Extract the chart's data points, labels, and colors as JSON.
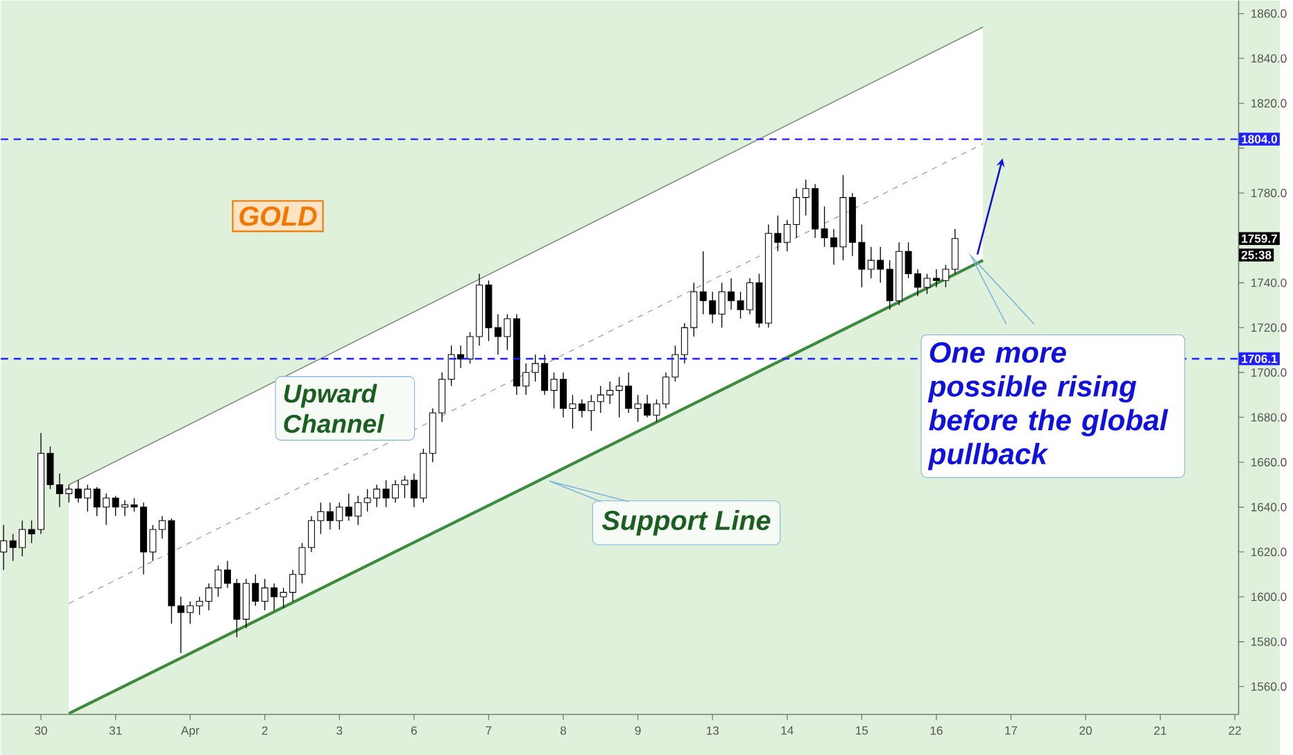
{
  "chart_data": {
    "type": "candlestick",
    "categories": [
      null,
      null,
      null,
      null,
      "30",
      null,
      null,
      null,
      null,
      null,
      null,
      null,
      "31",
      null,
      null,
      null,
      null,
      null,
      null,
      null,
      "Apr",
      null,
      null,
      null,
      null,
      null,
      null,
      null,
      "2",
      null,
      null,
      null,
      null,
      null,
      null,
      null,
      "3",
      null,
      null,
      null,
      null,
      null,
      null,
      null,
      "6",
      null,
      null,
      null,
      null,
      null,
      null,
      null,
      "7",
      null,
      null,
      null,
      null,
      null,
      null,
      null,
      "8",
      null,
      null,
      null,
      null,
      null,
      null,
      null,
      "9",
      null,
      null,
      null,
      null,
      null,
      null,
      null,
      "13",
      null,
      null,
      null,
      null,
      null,
      null,
      null,
      "14",
      null,
      null,
      null,
      null,
      null,
      null,
      null,
      "15",
      null,
      null,
      null,
      null,
      null,
      null,
      null,
      "16",
      null,
      null,
      null,
      null,
      null,
      null,
      null,
      "17",
      null,
      null,
      null,
      null,
      null,
      null,
      null,
      "20",
      null,
      null,
      null,
      null,
      null,
      null,
      null,
      "21",
      null,
      null,
      null,
      null,
      null,
      null,
      null,
      "22"
    ],
    "ohlc": [
      [
        1620,
        1632,
        1612,
        1625
      ],
      [
        1625,
        1628,
        1616,
        1622
      ],
      [
        1622,
        1634,
        1618,
        1630
      ],
      [
        1630,
        1634,
        1624,
        1628
      ],
      [
        1630,
        1673,
        1628,
        1664
      ],
      [
        1664,
        1667,
        1648,
        1650
      ],
      [
        1650,
        1655,
        1640,
        1646
      ],
      [
        1646,
        1650,
        1642,
        1648
      ],
      [
        1648,
        1652,
        1642,
        1644
      ],
      [
        1644,
        1650,
        1638,
        1648
      ],
      [
        1648,
        1649,
        1636,
        1640
      ],
      [
        1640,
        1646,
        1632,
        1644
      ],
      [
        1644,
        1645,
        1636,
        1640
      ],
      [
        1640,
        1643,
        1636,
        1641
      ],
      [
        1641,
        1644,
        1638,
        1640
      ],
      [
        1640,
        1642,
        1610,
        1620
      ],
      [
        1620,
        1632,
        1616,
        1630
      ],
      [
        1630,
        1636,
        1626,
        1634
      ],
      [
        1634,
        1635,
        1588,
        1596
      ],
      [
        1596,
        1600,
        1575,
        1593
      ],
      [
        1593,
        1598,
        1588,
        1596
      ],
      [
        1596,
        1600,
        1592,
        1598
      ],
      [
        1598,
        1606,
        1594,
        1604
      ],
      [
        1604,
        1614,
        1600,
        1612
      ],
      [
        1612,
        1616,
        1604,
        1606
      ],
      [
        1606,
        1608,
        1582,
        1590
      ],
      [
        1590,
        1608,
        1586,
        1606
      ],
      [
        1606,
        1610,
        1596,
        1598
      ],
      [
        1598,
        1608,
        1594,
        1604
      ],
      [
        1604,
        1606,
        1594,
        1600
      ],
      [
        1600,
        1604,
        1595,
        1602
      ],
      [
        1602,
        1612,
        1598,
        1610
      ],
      [
        1610,
        1624,
        1606,
        1622
      ],
      [
        1622,
        1636,
        1620,
        1634
      ],
      [
        1634,
        1642,
        1628,
        1638
      ],
      [
        1638,
        1642,
        1630,
        1634
      ],
      [
        1634,
        1642,
        1630,
        1640
      ],
      [
        1640,
        1646,
        1634,
        1636
      ],
      [
        1636,
        1645,
        1632,
        1642
      ],
      [
        1642,
        1648,
        1638,
        1644
      ],
      [
        1644,
        1650,
        1640,
        1648
      ],
      [
        1648,
        1652,
        1640,
        1644
      ],
      [
        1644,
        1652,
        1642,
        1650
      ],
      [
        1650,
        1654,
        1644,
        1652
      ],
      [
        1652,
        1655,
        1640,
        1644
      ],
      [
        1644,
        1666,
        1642,
        1664
      ],
      [
        1664,
        1684,
        1660,
        1682
      ],
      [
        1682,
        1700,
        1678,
        1697
      ],
      [
        1697,
        1712,
        1694,
        1708
      ],
      [
        1708,
        1712,
        1702,
        1706
      ],
      [
        1706,
        1718,
        1704,
        1716
      ],
      [
        1716,
        1744,
        1712,
        1739
      ],
      [
        1739,
        1741,
        1714,
        1720
      ],
      [
        1720,
        1726,
        1708,
        1716
      ],
      [
        1716,
        1726,
        1710,
        1724
      ],
      [
        1724,
        1726,
        1690,
        1694
      ],
      [
        1694,
        1704,
        1690,
        1700
      ],
      [
        1700,
        1708,
        1696,
        1704
      ],
      [
        1704,
        1708,
        1690,
        1692
      ],
      [
        1692,
        1700,
        1684,
        1697
      ],
      [
        1697,
        1700,
        1680,
        1684
      ],
      [
        1684,
        1690,
        1675,
        1686
      ],
      [
        1686,
        1688,
        1680,
        1683
      ],
      [
        1683,
        1690,
        1674,
        1687
      ],
      [
        1687,
        1694,
        1682,
        1690
      ],
      [
        1690,
        1696,
        1686,
        1692
      ],
      [
        1692,
        1698,
        1680,
        1694
      ],
      [
        1694,
        1700,
        1682,
        1684
      ],
      [
        1684,
        1690,
        1678,
        1686
      ],
      [
        1686,
        1690,
        1680,
        1681
      ],
      [
        1681,
        1688,
        1678,
        1686
      ],
      [
        1686,
        1700,
        1684,
        1698
      ],
      [
        1698,
        1712,
        1696,
        1708
      ],
      [
        1708,
        1722,
        1704,
        1720
      ],
      [
        1720,
        1740,
        1716,
        1736
      ],
      [
        1736,
        1754,
        1726,
        1732
      ],
      [
        1732,
        1736,
        1722,
        1726
      ],
      [
        1726,
        1740,
        1720,
        1736
      ],
      [
        1736,
        1742,
        1728,
        1732
      ],
      [
        1732,
        1736,
        1724,
        1728
      ],
      [
        1728,
        1742,
        1726,
        1740
      ],
      [
        1740,
        1744,
        1720,
        1722
      ],
      [
        1722,
        1766,
        1720,
        1762
      ],
      [
        1762,
        1770,
        1754,
        1758
      ],
      [
        1758,
        1768,
        1754,
        1766
      ],
      [
        1766,
        1782,
        1760,
        1778
      ],
      [
        1778,
        1786,
        1770,
        1782
      ],
      [
        1782,
        1784,
        1760,
        1764
      ],
      [
        1764,
        1774,
        1756,
        1760
      ],
      [
        1760,
        1764,
        1748,
        1756
      ],
      [
        1756,
        1788,
        1750,
        1778
      ],
      [
        1778,
        1780,
        1752,
        1758
      ],
      [
        1758,
        1766,
        1738,
        1746
      ],
      [
        1746,
        1756,
        1742,
        1750
      ],
      [
        1750,
        1756,
        1740,
        1746
      ],
      [
        1746,
        1750,
        1728,
        1732
      ],
      [
        1732,
        1758,
        1730,
        1754
      ],
      [
        1754,
        1758,
        1742,
        1744
      ],
      [
        1744,
        1746,
        1734,
        1738
      ],
      [
        1738,
        1744,
        1735,
        1742
      ],
      [
        1742,
        1746,
        1738,
        1741
      ],
      [
        1741,
        1748,
        1738,
        1746
      ],
      [
        1746,
        1764,
        1744,
        1759.7
      ],
      null,
      null,
      null,
      null,
      null,
      null,
      null,
      null,
      null,
      null,
      null,
      null,
      null,
      null,
      null,
      null,
      null,
      null,
      null,
      null,
      null,
      null,
      null,
      null,
      null,
      null,
      null,
      null,
      null,
      null
    ],
    "series": [
      {
        "type": "line",
        "color": "#9e9e9e",
        "line_style": "dashed",
        "values": [
          null,
          null,
          null,
          null,
          null,
          null,
          null,
          1597,
          null,
          null,
          null,
          null,
          null,
          null,
          null,
          null,
          null,
          null,
          null,
          null,
          null,
          null,
          null,
          null,
          null,
          null,
          null,
          null,
          null,
          null,
          null,
          null,
          null,
          null,
          null,
          null,
          null,
          null,
          null,
          null,
          null,
          null,
          null,
          null,
          null,
          null,
          null,
          null,
          null,
          null,
          null,
          null,
          null,
          null,
          null,
          null,
          null,
          null,
          null,
          null,
          null,
          null,
          null,
          null,
          null,
          null,
          null,
          null,
          null,
          null,
          null,
          null,
          null,
          null,
          null,
          null,
          null,
          null,
          null,
          null,
          null,
          null,
          null,
          null,
          null,
          null,
          null,
          null,
          null,
          null,
          null,
          null,
          null,
          null,
          null,
          null,
          null,
          null,
          null,
          null,
          null,
          null,
          null,
          null,
          null,
          1802,
          null,
          null,
          null,
          null,
          null,
          null,
          null,
          null,
          null,
          null,
          null,
          null,
          null,
          null,
          null,
          null,
          null,
          null,
          null,
          null,
          null,
          null,
          null,
          null,
          null,
          null,
          null
        ],
        "lower": [
          null,
          null,
          null,
          null,
          null,
          null,
          null,
          1548,
          null,
          null,
          null,
          null,
          null,
          null,
          null,
          null,
          null,
          null,
          null,
          null,
          null,
          null,
          null,
          null,
          null,
          null,
          null,
          null,
          null,
          null,
          null,
          null,
          null,
          null,
          null,
          null,
          null,
          null,
          null,
          null,
          null,
          null,
          null,
          null,
          null,
          null,
          null,
          null,
          null,
          null,
          null,
          null,
          null,
          null,
          null,
          null,
          null,
          null,
          null,
          null,
          null,
          null,
          null,
          null,
          null,
          null,
          null,
          null,
          null,
          null,
          null,
          null,
          null,
          null,
          null,
          null,
          null,
          null,
          null,
          null,
          null,
          null,
          null,
          null,
          null,
          null,
          null,
          null,
          null,
          null,
          null,
          null,
          null,
          null,
          null,
          null,
          null,
          null,
          null,
          null,
          null,
          null,
          null,
          null,
          null,
          1750,
          null,
          null,
          null,
          null,
          null,
          null,
          null,
          null,
          null,
          null,
          null,
          null,
          null,
          null,
          null,
          null,
          null,
          null,
          null,
          null,
          null,
          null,
          null,
          null,
          null,
          null,
          null
        ],
        "upper": [
          null,
          null,
          null,
          null,
          null,
          null,
          null,
          1650,
          null,
          null,
          null,
          null,
          null,
          null,
          null,
          null,
          null,
          null,
          null,
          null,
          null,
          null,
          null,
          null,
          null,
          null,
          null,
          null,
          null,
          null,
          null,
          null,
          null,
          null,
          null,
          null,
          null,
          null,
          null,
          null,
          null,
          null,
          null,
          null,
          null,
          null,
          null,
          null,
          null,
          null,
          null,
          null,
          null,
          null,
          null,
          null,
          null,
          null,
          null,
          null,
          null,
          null,
          null,
          null,
          null,
          null,
          null,
          null,
          null,
          null,
          null,
          null,
          null,
          null,
          null,
          null,
          null,
          null,
          null,
          null,
          null,
          null,
          null,
          null,
          null,
          null,
          null,
          null,
          null,
          null,
          null,
          null,
          null,
          null,
          null,
          null,
          null,
          null,
          null,
          null,
          null,
          null,
          null,
          null,
          null,
          1854,
          null,
          null,
          null,
          null,
          null,
          null,
          null,
          null,
          null,
          null,
          null,
          null,
          null,
          null,
          null,
          null,
          null,
          null,
          null,
          null,
          null,
          null,
          null,
          null,
          null,
          null,
          null
        ]
      },
      {
        "type": "line",
        "color": "#7f8f7f",
        "line_style": "solid",
        "values": [
          null,
          null,
          null,
          null,
          null,
          null,
          null,
          1650,
          null,
          null,
          null,
          null,
          null,
          null,
          null,
          null,
          null,
          null,
          null,
          null,
          null,
          null,
          null,
          null,
          null,
          null,
          null,
          null,
          null,
          null,
          null,
          null,
          null,
          null,
          null,
          null,
          null,
          null,
          null,
          null,
          null,
          null,
          null,
          null,
          null,
          null,
          null,
          null,
          null,
          null,
          null,
          null,
          null,
          null,
          null,
          null,
          null,
          null,
          null,
          null,
          null,
          null,
          null,
          null,
          null,
          null,
          null,
          null,
          null,
          null,
          null,
          null,
          null,
          null,
          null,
          null,
          null,
          null,
          null,
          null,
          null,
          null,
          null,
          null,
          null,
          null,
          null,
          null,
          null,
          null,
          null,
          null,
          null,
          null,
          null,
          null,
          null,
          null,
          null,
          null,
          null,
          null,
          null,
          null,
          null,
          1854,
          null,
          null,
          null,
          null,
          null,
          null,
          null,
          null,
          null,
          null,
          null,
          null,
          null,
          null,
          null,
          null,
          null,
          null,
          null,
          null,
          null,
          null,
          null,
          null,
          null,
          null,
          null
        ]
      },
      {
        "type": "line",
        "color": "#3d8b3d",
        "line_style": "solid",
        "values": [
          null,
          null,
          null,
          null,
          null,
          null,
          null,
          1548,
          null,
          null,
          null,
          null,
          null,
          null,
          null,
          null,
          null,
          null,
          null,
          null,
          null,
          null,
          null,
          null,
          null,
          null,
          null,
          null,
          null,
          null,
          null,
          null,
          null,
          null,
          null,
          null,
          null,
          null,
          null,
          null,
          null,
          null,
          null,
          null,
          null,
          null,
          null,
          null,
          null,
          null,
          null,
          null,
          null,
          null,
          null,
          null,
          null,
          null,
          null,
          null,
          null,
          null,
          null,
          null,
          null,
          null,
          null,
          null,
          null,
          null,
          null,
          null,
          null,
          null,
          null,
          null,
          null,
          null,
          null,
          null,
          null,
          null,
          null,
          null,
          null,
          null,
          null,
          null,
          null,
          null,
          null,
          null,
          null,
          null,
          null,
          null,
          null,
          null,
          null,
          null,
          null,
          null,
          null,
          null,
          null,
          1750,
          null,
          null,
          null,
          null,
          null,
          null,
          null,
          null,
          null,
          null,
          null,
          null,
          null,
          null,
          null,
          null,
          null,
          null,
          null,
          null,
          null,
          null,
          null,
          null,
          null,
          null,
          null
        ]
      }
    ],
    "ylim": [
      1547.6,
      1865.8
    ],
    "yticks": [
      {
        "value": 1560,
        "label": "1560.0"
      },
      {
        "value": 1580,
        "label": "1580.0"
      },
      {
        "value": 1600,
        "label": "1600.0"
      },
      {
        "value": 1620,
        "label": "1620.0"
      },
      {
        "value": 1640,
        "label": "1640.0"
      },
      {
        "value": 1660,
        "label": "1660.0"
      },
      {
        "value": 1680,
        "label": "1680.0"
      },
      {
        "value": 1700,
        "label": "1700.0"
      },
      {
        "value": 1720,
        "label": "1720.0"
      },
      {
        "value": 1740,
        "label": "1740.0"
      },
      {
        "value": 1760,
        "label": null
      },
      {
        "value": 1780,
        "label": "1780.0"
      },
      {
        "value": 1800,
        "label": null
      },
      {
        "value": 1820,
        "label": "1820.0"
      },
      {
        "value": 1840,
        "label": "1840.0"
      },
      {
        "value": 1860,
        "label": "1860.0"
      }
    ],
    "ref_lines": [
      {
        "axis": "y",
        "value": 1804.0,
        "label": "1804.0",
        "color": "#1f1fff",
        "line_style": "dashed"
      },
      {
        "axis": "y",
        "value": 1706.1,
        "label": "1706.1",
        "color": "#1f1fff",
        "line_style": "dashed"
      }
    ],
    "annotations": [
      "GOLD",
      "Upward Channel",
      "Support Line",
      "One more possible rising before the global pullback",
      "1759.7",
      "25:38"
    ]
  }
}
